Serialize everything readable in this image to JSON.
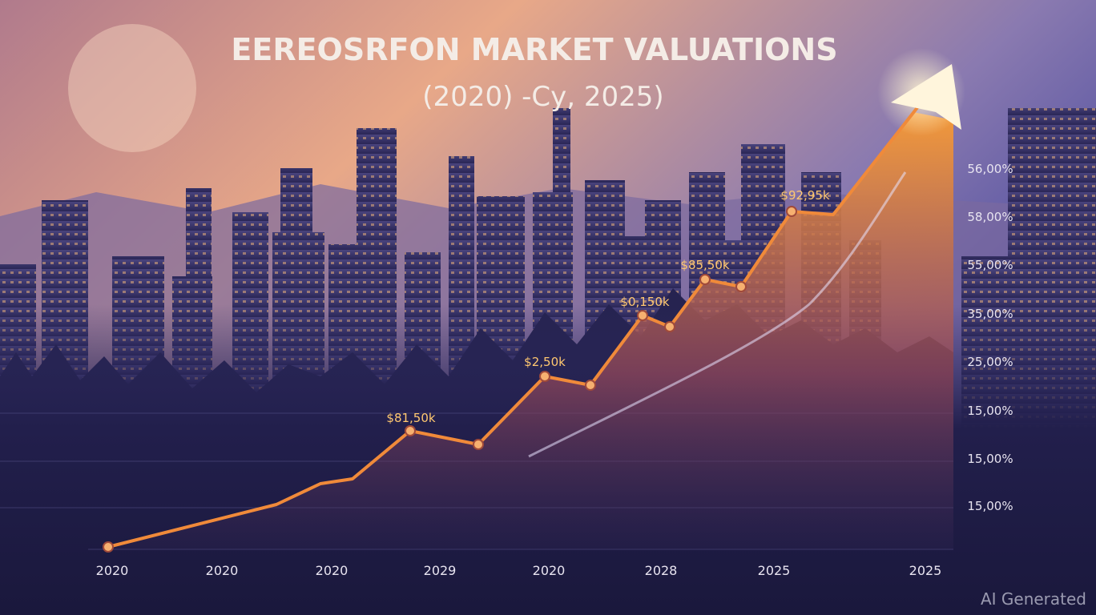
{
  "header": {
    "title": "EEREOSRFON MARKET VALUATIONS",
    "subtitle": "(2020) -Cy, 2025)"
  },
  "y_axis_labels": [
    "56,00%",
    "58,00%",
    "55,00%",
    "35,00%",
    "25,00%",
    "15,00%",
    "15,00%",
    "15,00%"
  ],
  "x_axis_labels": [
    "2020",
    "2020",
    "2020",
    "2029",
    "2020",
    "2028",
    "2025",
    "2025"
  ],
  "point_labels": [
    "$81,50k",
    "$2,50k",
    "$0,150k",
    "$85,50k",
    "$92,95k"
  ],
  "watermark": "AI Generated"
}
